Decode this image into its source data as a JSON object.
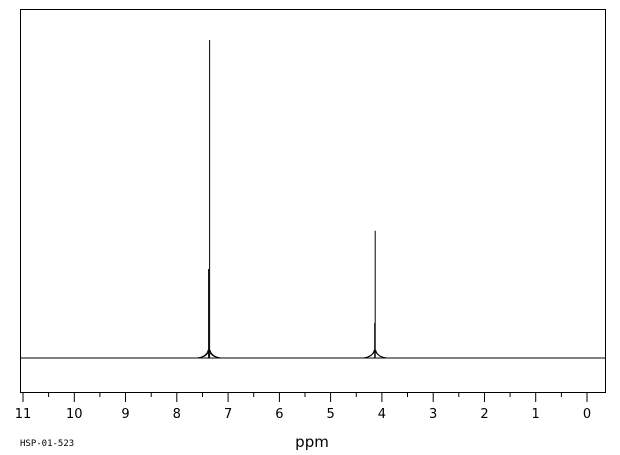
{
  "chart_data": {
    "type": "line",
    "xlabel": "ppm",
    "ylabel": "",
    "title": "",
    "code": "HSP-01-523",
    "x_reversed": true,
    "xlim": [
      11,
      0
    ],
    "ylim": [
      0,
      1
    ],
    "major_ticks": [
      11,
      10,
      9,
      8,
      7,
      6,
      5,
      4,
      3,
      2,
      1,
      0
    ],
    "peaks": [
      {
        "ppm": 7.36,
        "intensity": 1.0
      },
      {
        "ppm": 7.38,
        "intensity": 0.28
      },
      {
        "ppm": 4.13,
        "intensity": 0.4
      },
      {
        "ppm": 4.14,
        "intensity": 0.11
      }
    ],
    "grid": false,
    "legend": "none"
  }
}
